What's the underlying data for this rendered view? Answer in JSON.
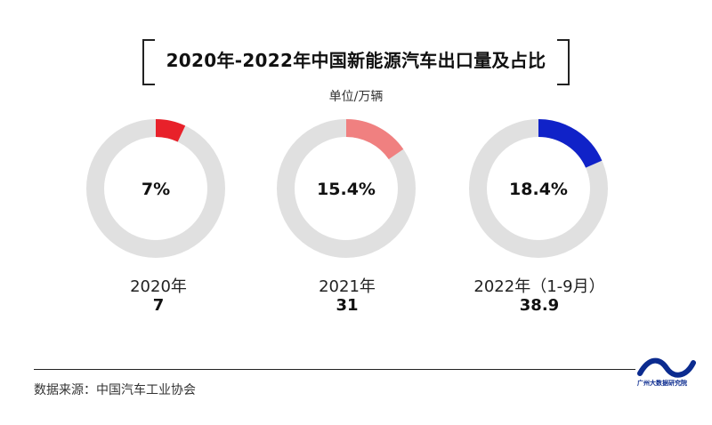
{
  "title": "2020年-2022年中国新能源汽车出口量及占比",
  "unit": "单位/万辆",
  "source": "数据来源：中国汽车工业协会",
  "logo_text": "广州大数据研究院",
  "colors": {
    "track": "#e0e0e0",
    "series": [
      "#e8212a",
      "#f08080",
      "#1022c8"
    ],
    "logo": "#0b2b8f"
  },
  "chart_data": {
    "type": "pie",
    "items": [
      {
        "year": "2020年",
        "export": "7",
        "share_label": "7%",
        "share": 7
      },
      {
        "year": "2021年",
        "export": "31",
        "share_label": "15.4%",
        "share": 15.4
      },
      {
        "year": "2022年（1-9月）",
        "export": "38.9",
        "share_label": "18.4%",
        "share": 18.4
      }
    ]
  }
}
